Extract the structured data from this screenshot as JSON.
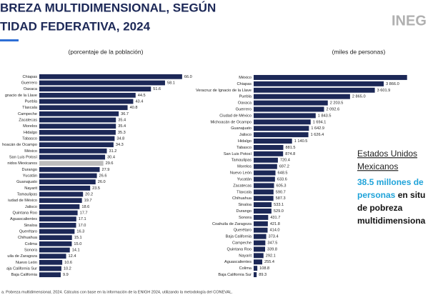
{
  "header": {
    "title_line1": "BREZA MULTIDIMENSIONAL, SEGÚN",
    "title_line2": "TIDAD FEDERATIVA, 2024",
    "logo": "INEG"
  },
  "chart_data": [
    {
      "type": "bar",
      "subtitle": "(porcentaje de la población)",
      "categories": [
        "Chiapas",
        "Guerrero",
        "Oaxaca",
        "gnacio de la Llave",
        "Puebla",
        "Tlaxcala",
        "Campeche",
        "Zacatecas",
        "Morelos",
        "Hidalgo",
        "Tabasco",
        "hoacán de Ocampo",
        "México",
        "San Luis Potosí",
        "nidos Mexicanos",
        "Durango",
        "Yucatán",
        "Guanajuato",
        "Nayarit",
        "Tamaulipas",
        "iudad de México",
        "Jalisco",
        "Quintana Roo",
        "Aguascalientes",
        "Sinaloa",
        "Querétaro",
        "Chihuahua",
        "Colima",
        "Sonora",
        "uila de Zaragoza",
        "Nuevo León",
        "aja California Sur",
        "Baja California"
      ],
      "values": [
        66.0,
        58.1,
        51.6,
        44.5,
        43.4,
        40.8,
        36.7,
        35.4,
        35.4,
        35.3,
        34.8,
        34.3,
        31.2,
        30.4,
        29.6,
        27.9,
        26.6,
        26.0,
        23.5,
        20.2,
        19.7,
        18.6,
        17.7,
        17.1,
        17.0,
        16.3,
        15.1,
        15.0,
        14.1,
        12.4,
        10.6,
        10.2,
        9.9
      ],
      "value_labels": [
        "66.0",
        "58.1",
        "51.6",
        "44.5",
        "43.4",
        "40.8",
        "36.7",
        "35.4",
        "35.4",
        "35.3",
        "34.8",
        "34.3",
        "31.2",
        "30.4",
        "29.6",
        "27.9",
        "26.6",
        "26.0",
        "23.5",
        "20.2",
        "19.7",
        "18.6",
        "17.7",
        "17.1",
        "17.0",
        "16.3",
        "15.1",
        "15.0",
        "14.1",
        "12.4",
        "10.6",
        "10.2",
        "9.9"
      ],
      "color": "#1c2857",
      "highlight_color": "#bdbdbd",
      "highlight_index": 14,
      "xlim": [
        0,
        70
      ]
    },
    {
      "type": "bar",
      "subtitle": "(miles de personas)",
      "categories": [
        "México",
        "Chiapas",
        "Veracruz de Ignacio de la Llave",
        "Puebla",
        "Oaxaca",
        "Guerrero",
        "Ciudad de México",
        "Michoacán de Ocampo",
        "Guanajuato",
        "Jalisco",
        "Hidalgo",
        "Tabasco",
        "San Luis Potosí",
        "Tamaulipas",
        "Morelos",
        "Nuevo León",
        "Yucatán",
        "Zacatecas",
        "Tlaxcala",
        "Chihuahua",
        "Sinaloa",
        "Durango",
        "Sonora",
        "Coahuila de Zaragoza",
        "Querétaro",
        "Baja California",
        "Campeche",
        "Quintana Roo",
        "Nayarit",
        "Aguascalientes",
        "Colima",
        "Baja California Sur"
      ],
      "values": [
        4560,
        3866.0,
        3601.9,
        2865.0,
        2203.5,
        2092.6,
        1843.5,
        1694.1,
        1642.9,
        1626.4,
        1140.5,
        881.5,
        874.8,
        720.4,
        697.2,
        648.5,
        633.6,
        605.3,
        590.7,
        587.3,
        533.1,
        529.0,
        431.7,
        421.8,
        414.0,
        373.4,
        347.5,
        339.8,
        292.1,
        255.4,
        108.8,
        89.3
      ],
      "value_labels": [
        null,
        "3 866.0",
        "3 601.9",
        "2 865.0",
        "2 203.5",
        "2 092.6",
        "1 843.5",
        "1 694.1",
        "1 642.9",
        "1 626.4",
        "1 140.5",
        "881.5",
        "874.8",
        "720.4",
        "697.2",
        "648.5",
        "633.6",
        "605.3",
        "590.7",
        "587.3",
        "533.1",
        "529.0",
        "431.7",
        "421.8",
        "414.0",
        "373.4",
        "347.5",
        "339.8",
        "292.1",
        "255.4",
        "108.8",
        "89.3"
      ],
      "color": "#1c2857",
      "xlim": [
        0,
        4800
      ]
    }
  ],
  "callout": {
    "heading_1": "Estados Unidos",
    "heading_2": "Mexicanos",
    "line1_a": "38.5 millones de",
    "line2_a": "personas",
    "line2_b": " en situ",
    "line3": "de pobreza",
    "line4": "multidimensiona"
  },
  "footer": "a. Pobreza multidimensional, 2024. Cálculos con base en la información de la ENIGH 2024, utilizando la metodología del CONEVAL."
}
